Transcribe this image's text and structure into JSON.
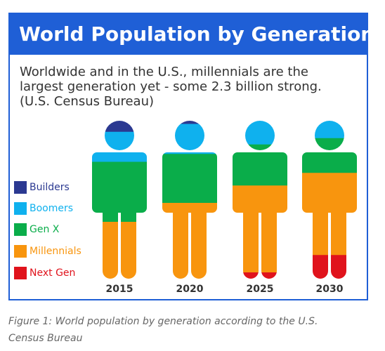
{
  "title": "World Population by Generation",
  "subtitle_lines": [
    "Worldwide and in the U.S., millennials are the",
    "largest generation yet - some 2.3 billion strong.",
    "(U.S. Census Bureau)"
  ],
  "caption_lines": [
    "Figure 1: World population by generation according to the U.S.",
    "Census Bureau"
  ],
  "colors": {
    "frame": "#1f5fd6",
    "title_text": "#ffffff",
    "builders": "#2b3991",
    "boomers": "#0fb1ee",
    "gen_x": "#0aad4a",
    "millennials": "#f8950e",
    "next_gen": "#e0131c"
  },
  "chart_data": {
    "type": "stacked-pictograph",
    "title": "World Population by Generation",
    "unit": "percent of figure height",
    "categories": [
      "2015",
      "2020",
      "2025",
      "2030"
    ],
    "series": [
      {
        "name": "Builders",
        "color": "#2b3991",
        "values": [
          7,
          2,
          0,
          0
        ]
      },
      {
        "name": "Boomers",
        "color": "#0fb1ee",
        "values": [
          19,
          19,
          15,
          11
        ]
      },
      {
        "name": "Gen X",
        "color": "#0aad4a",
        "values": [
          38,
          31,
          26,
          22
        ]
      },
      {
        "name": "Millennials",
        "color": "#f8950e",
        "values": [
          36,
          48,
          55,
          52
        ]
      },
      {
        "name": "Next Gen",
        "color": "#e0131c",
        "values": [
          0,
          0,
          4,
          15
        ]
      }
    ],
    "legend": "left"
  }
}
